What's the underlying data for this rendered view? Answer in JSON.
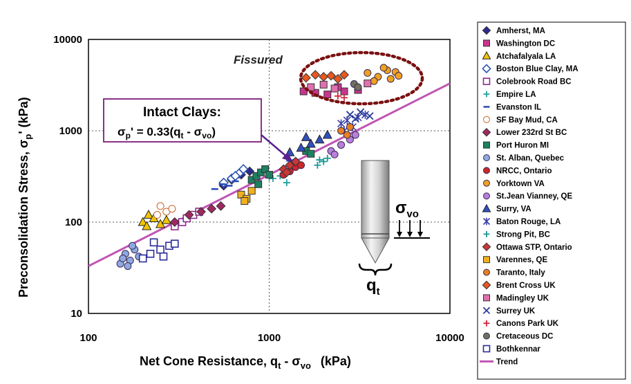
{
  "chart_data": {
    "type": "scatter",
    "x_scale": "log",
    "y_scale": "log",
    "xlim": [
      100,
      10000
    ],
    "ylim": [
      10,
      10000
    ],
    "x_ticks": [
      "100",
      "1000",
      "10000"
    ],
    "y_ticks": [
      "10",
      "100",
      "1000",
      "10000"
    ],
    "xlabel_parts": {
      "main": "Net Cone Resistance, q",
      "sub1": "t",
      "mid": " - σ",
      "sub2": "vo",
      "unit": "(kPa)"
    },
    "ylabel_parts": {
      "main": "Preconsolidation Stress, σ",
      "sub": "p",
      "tail": "' (kPa)"
    },
    "annotations": {
      "fissured": "Fissured",
      "intact_title": "Intact Clays:",
      "equation": {
        "lhs": "σ",
        "lhs_sub": "p",
        "mid": "' = 0.33(q",
        "q_sub": "t",
        "minus": " - σ",
        "vo_sub": "vo",
        "close": ")"
      },
      "sigma_vo": {
        "main": "σ",
        "sub": "vo"
      },
      "qt": {
        "main": "q",
        "sub": "t"
      }
    },
    "trend": {
      "name": "Trend",
      "coefficient": 0.33,
      "x": [
        100,
        10000
      ],
      "y": [
        33,
        3300
      ],
      "color": "#c054b4"
    },
    "series": [
      {
        "name": "Amherst, MA",
        "marker": "diamond",
        "color": "#2b2b8f",
        "filled": true,
        "points": [
          [
            620,
            290
          ],
          [
            700,
            330
          ],
          [
            560,
            250
          ],
          [
            780,
            360
          ]
        ]
      },
      {
        "name": "Washington DC",
        "marker": "square",
        "color": "#c8358f",
        "filled": true,
        "points": [
          [
            1550,
            2700
          ],
          [
            1800,
            2600
          ],
          [
            2100,
            2500
          ],
          [
            2600,
            2700
          ],
          [
            3100,
            2800
          ],
          [
            2400,
            3000
          ]
        ]
      },
      {
        "name": "Atchafalyala LA",
        "marker": "triangle",
        "color": "#f2c500",
        "filled": true,
        "points": [
          [
            200,
            100
          ],
          [
            215,
            120
          ],
          [
            230,
            110
          ],
          [
            250,
            95
          ],
          [
            270,
            105
          ],
          [
            210,
            90
          ]
        ]
      },
      {
        "name": "Boston Blue Clay, MA",
        "marker": "diamond",
        "color": "#2a54b4",
        "filled": false,
        "points": [
          [
            560,
            270
          ],
          [
            620,
            300
          ],
          [
            680,
            340
          ],
          [
            720,
            380
          ],
          [
            650,
            320
          ]
        ]
      },
      {
        "name": "Colebrook Road BC",
        "marker": "square",
        "color": "#8a2a8a",
        "filled": false,
        "points": [
          [
            330,
            100
          ],
          [
            350,
            110
          ],
          [
            380,
            120
          ],
          [
            300,
            90
          ],
          [
            410,
            130
          ]
        ]
      },
      {
        "name": "Empire LA",
        "marker": "plus",
        "color": "#1fa0a0",
        "filled": false,
        "points": [
          [
            1050,
            300
          ],
          [
            1150,
            320
          ],
          [
            1250,
            270
          ],
          [
            1000,
            310
          ]
        ]
      },
      {
        "name": "Evanston IL",
        "marker": "dash",
        "color": "#2b48b8",
        "filled": true,
        "points": [
          [
            500,
            230
          ],
          [
            550,
            260
          ],
          [
            600,
            250
          ],
          [
            650,
            280
          ],
          [
            1300,
            470
          ],
          [
            1400,
            480
          ]
        ]
      },
      {
        "name": "SF Bay Mud, CA",
        "marker": "circle",
        "color": "#c86428",
        "filled": false,
        "points": [
          [
            250,
            150
          ],
          [
            270,
            130
          ],
          [
            240,
            120
          ],
          [
            290,
            140
          ]
        ]
      },
      {
        "name": "Lower 232rd St BC",
        "marker": "diamond",
        "color": "#a02860",
        "filled": true,
        "points": [
          [
            300,
            100
          ],
          [
            360,
            120
          ],
          [
            420,
            130
          ],
          [
            480,
            140
          ],
          [
            540,
            150
          ]
        ]
      },
      {
        "name": "Port Huron MI",
        "marker": "square",
        "color": "#1e8060",
        "filled": true,
        "points": [
          [
            800,
            290
          ],
          [
            850,
            320
          ],
          [
            900,
            350
          ],
          [
            950,
            380
          ],
          [
            1000,
            330
          ],
          [
            870,
            260
          ],
          [
            1600,
            600
          ],
          [
            1700,
            560
          ]
        ]
      },
      {
        "name": "St. Alban, Quebec",
        "marker": "circle",
        "color": "#8fa8e0",
        "filled": true,
        "points": [
          [
            150,
            35
          ],
          [
            160,
            45
          ],
          [
            170,
            38
          ],
          [
            180,
            50
          ],
          [
            155,
            40
          ],
          [
            190,
            42
          ],
          [
            175,
            55
          ],
          [
            165,
            33
          ]
        ]
      },
      {
        "name": "NRCC, Ontario",
        "marker": "circle",
        "color": "#cc2828",
        "filled": true,
        "points": [
          [
            1200,
            330
          ],
          [
            1300,
            360
          ],
          [
            1400,
            400
          ],
          [
            1500,
            420
          ]
        ]
      },
      {
        "name": "Yorktown VA",
        "marker": "circle",
        "color": "#f0a020",
        "filled": true,
        "points": [
          [
            3500,
            4300
          ],
          [
            4000,
            3900
          ],
          [
            4500,
            4600
          ],
          [
            5000,
            4400
          ],
          [
            3800,
            3500
          ],
          [
            4300,
            4900
          ],
          [
            5200,
            4000
          ],
          [
            4700,
            3700
          ]
        ]
      },
      {
        "name": "St.Jean Vianney, QE",
        "marker": "circle",
        "color": "#b880d8",
        "filled": true,
        "points": [
          [
            2200,
            600
          ],
          [
            2500,
            700
          ],
          [
            2800,
            800
          ],
          [
            3000,
            900
          ],
          [
            2300,
            550
          ]
        ]
      },
      {
        "name": "Surry, VA",
        "marker": "triangle",
        "color": "#3050c0",
        "filled": true,
        "points": [
          [
            1300,
            580
          ],
          [
            1500,
            650
          ],
          [
            1700,
            720
          ],
          [
            1900,
            800
          ],
          [
            2100,
            900
          ],
          [
            1600,
            850
          ]
        ]
      },
      {
        "name": "Baton Rouge, LA",
        "marker": "asterisk",
        "color": "#3a40a8",
        "filled": false,
        "points": [
          [
            2500,
            1200
          ],
          [
            2700,
            1300
          ],
          [
            2900,
            1100
          ],
          [
            3100,
            1400
          ],
          [
            3400,
            1500
          ],
          [
            2600,
            1000
          ]
        ]
      },
      {
        "name": "Strong Pit, BC",
        "marker": "plus",
        "color": "#1a9898",
        "filled": false,
        "points": [
          [
            1900,
            480
          ],
          [
            2000,
            460
          ],
          [
            2100,
            500
          ],
          [
            1850,
            420
          ]
        ]
      },
      {
        "name": "Ottawa STP, Ontario",
        "marker": "diamond",
        "color": "#c83838",
        "filled": true,
        "points": [
          [
            1200,
            380
          ],
          [
            1300,
            420
          ],
          [
            1400,
            460
          ],
          [
            1250,
            350
          ]
        ]
      },
      {
        "name": "Varennes, QE",
        "marker": "square",
        "color": "#f0b020",
        "filled": true,
        "points": [
          [
            700,
            200
          ],
          [
            750,
            180
          ],
          [
            800,
            220
          ],
          [
            730,
            170
          ]
        ]
      },
      {
        "name": "Taranto, Italy",
        "marker": "circle",
        "color": "#e88020",
        "filled": true,
        "points": [
          [
            2500,
            1000
          ],
          [
            2700,
            900
          ],
          [
            2800,
            1100
          ]
        ]
      },
      {
        "name": "Brent Cross UK",
        "marker": "diamond",
        "color": "#e85820",
        "filled": true,
        "points": [
          [
            1600,
            3800
          ],
          [
            1800,
            4100
          ],
          [
            2000,
            3900
          ],
          [
            2200,
            4000
          ],
          [
            2400,
            3700
          ],
          [
            2600,
            4100
          ]
        ]
      },
      {
        "name": "Madingley UK",
        "marker": "square",
        "color": "#e070b0",
        "filled": true,
        "points": [
          [
            1700,
            3000
          ],
          [
            2000,
            3200
          ],
          [
            2300,
            2900
          ],
          [
            3500,
            3300
          ]
        ]
      },
      {
        "name": "Surrey UK",
        "marker": "x",
        "color": "#2a3c9a",
        "filled": false,
        "points": [
          [
            2800,
            1500
          ],
          [
            3200,
            1600
          ],
          [
            3600,
            1450
          ],
          [
            3000,
            1350
          ]
        ]
      },
      {
        "name": "Canons Park UK",
        "marker": "plus",
        "color": "#d02840",
        "filled": false,
        "points": [
          [
            2400,
            2400
          ],
          [
            2600,
            2300
          ]
        ]
      },
      {
        "name": "Cretaceous DC",
        "marker": "circle",
        "color": "#707060",
        "filled": true,
        "points": [
          [
            2950,
            3250
          ],
          [
            3100,
            3000
          ]
        ]
      },
      {
        "name": "Bothkennar",
        "marker": "square",
        "color": "#2a2a98",
        "filled": false,
        "points": [
          [
            200,
            40
          ],
          [
            220,
            45
          ],
          [
            250,
            50
          ],
          [
            280,
            55
          ],
          [
            230,
            60
          ],
          [
            260,
            42
          ],
          [
            300,
            58
          ]
        ]
      }
    ]
  }
}
